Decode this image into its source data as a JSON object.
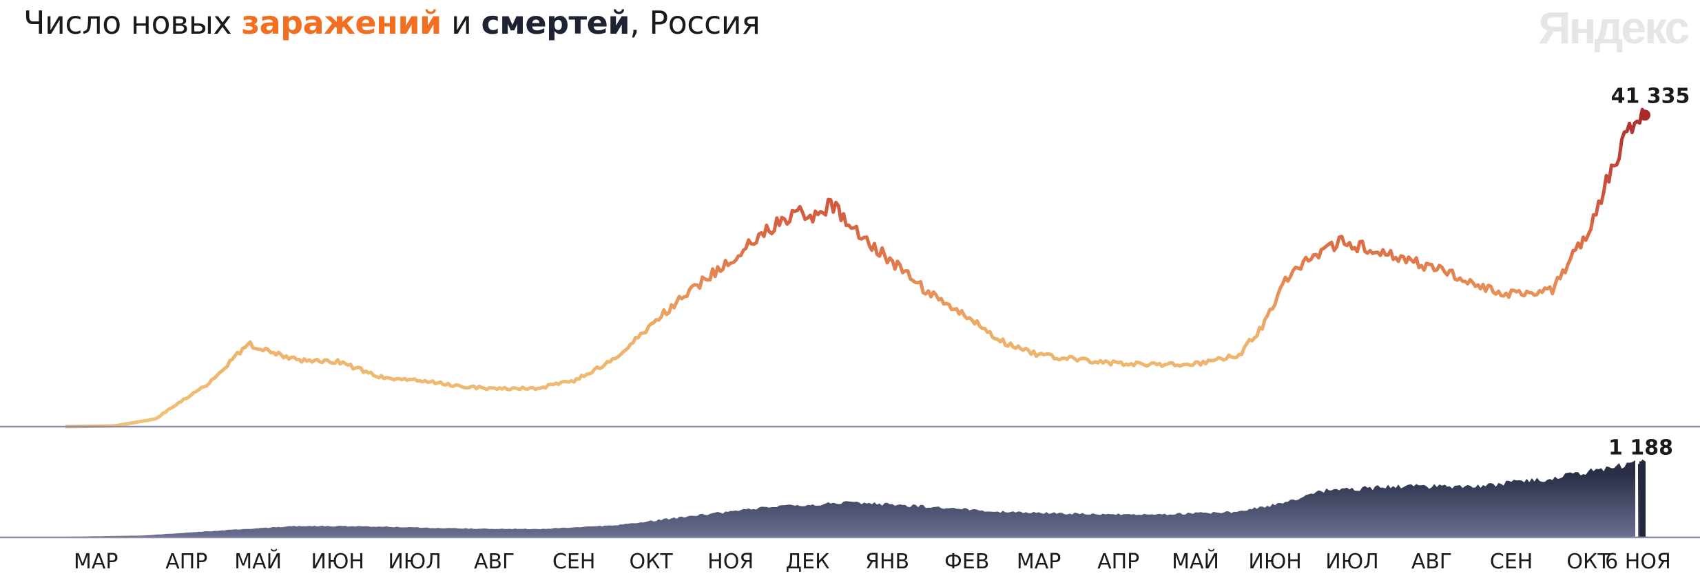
{
  "title": {
    "prefix": "Число новых ",
    "cases_word": "заражений",
    "middle": " и ",
    "deaths_word": "смертей",
    "suffix": ", Россия",
    "cases_color": "#f26e21",
    "deaths_color": "#1d2333"
  },
  "brand": "Яндекс",
  "chart_data": [
    {
      "type": "line",
      "title": "Число новых заражений",
      "x_anchor_dates": [
        "2020-03-01",
        "2020-03-20",
        "2020-04-05",
        "2020-04-15",
        "2020-04-25",
        "2020-05-01",
        "2020-05-11",
        "2020-05-20",
        "2020-06-01",
        "2020-06-15",
        "2020-07-01",
        "2020-07-15",
        "2020-08-01",
        "2020-08-15",
        "2020-09-01",
        "2020-09-15",
        "2020-10-01",
        "2020-10-15",
        "2020-11-01",
        "2020-11-15",
        "2020-12-01",
        "2020-12-10",
        "2020-12-20",
        "2020-12-24",
        "2021-01-01",
        "2021-01-15",
        "2021-02-01",
        "2021-02-15",
        "2021-03-01",
        "2021-03-15",
        "2021-04-01",
        "2021-04-15",
        "2021-05-01",
        "2021-05-15",
        "2021-06-01",
        "2021-06-10",
        "2021-06-20",
        "2021-07-01",
        "2021-07-10",
        "2021-07-20",
        "2021-08-01",
        "2021-08-15",
        "2021-09-01",
        "2021-09-15",
        "2021-10-01",
        "2021-10-15",
        "2021-10-25",
        "2021-11-01",
        "2021-11-06"
      ],
      "values": [
        0,
        100,
        1000,
        3400,
        5500,
        7500,
        11000,
        9800,
        8800,
        8700,
        6600,
        6200,
        5400,
        5000,
        5100,
        6100,
        8900,
        13500,
        18500,
        22000,
        26500,
        28500,
        28000,
        29500,
        26500,
        22500,
        17500,
        14500,
        11300,
        9500,
        8800,
        8400,
        8200,
        8300,
        9500,
        13300,
        20000,
        23000,
        24500,
        23800,
        22500,
        21200,
        18800,
        17500,
        18000,
        26000,
        35000,
        40000,
        41335
      ],
      "last_value": 41335,
      "last_label": "41 335",
      "ylim": [
        0,
        42000
      ]
    },
    {
      "type": "area",
      "title": "Число новых смертей",
      "x_anchor_dates": [
        "2020-03-01",
        "2020-04-01",
        "2020-05-01",
        "2020-06-01",
        "2020-07-01",
        "2020-08-01",
        "2020-09-01",
        "2020-10-01",
        "2020-11-01",
        "2020-12-01",
        "2021-01-01",
        "2021-02-01",
        "2021-03-01",
        "2021-04-01",
        "2021-05-01",
        "2021-06-01",
        "2021-06-20",
        "2021-07-01",
        "2021-08-01",
        "2021-09-01",
        "2021-10-01",
        "2021-11-01",
        "2021-11-06"
      ],
      "values": [
        0,
        20,
        100,
        170,
        160,
        130,
        120,
        180,
        330,
        470,
        540,
        470,
        390,
        360,
        350,
        390,
        550,
        720,
        790,
        790,
        920,
        1150,
        1188
      ],
      "last_value": 1188,
      "last_label": "1 188",
      "ylim": [
        0,
        1300
      ]
    }
  ],
  "x_axis": {
    "labels": [
      {
        "label": "МАР",
        "date": "2020-03-15"
      },
      {
        "label": "АПР",
        "date": "2020-04-15"
      },
      {
        "label": "МАЙ",
        "date": "2020-05-15"
      },
      {
        "label": "ИЮН",
        "date": "2020-06-15"
      },
      {
        "label": "ИЮЛ",
        "date": "2020-07-15"
      },
      {
        "label": "АВГ",
        "date": "2020-08-15"
      },
      {
        "label": "СЕН",
        "date": "2020-09-15"
      },
      {
        "label": "ОКТ",
        "date": "2020-10-15"
      },
      {
        "label": "НОЯ",
        "date": "2020-11-15"
      },
      {
        "label": "ДЕК",
        "date": "2020-12-15"
      },
      {
        "label": "ЯНВ",
        "date": "2021-01-15"
      },
      {
        "label": "ФЕВ",
        "date": "2021-02-15"
      },
      {
        "label": "МАР",
        "date": "2021-03-15"
      },
      {
        "label": "АПР",
        "date": "2021-04-15"
      },
      {
        "label": "МАЙ",
        "date": "2021-05-15"
      },
      {
        "label": "ИЮН",
        "date": "2021-06-15"
      },
      {
        "label": "ИЮЛ",
        "date": "2021-07-15"
      },
      {
        "label": "АВГ",
        "date": "2021-08-15"
      },
      {
        "label": "СЕН",
        "date": "2021-09-15"
      },
      {
        "label": "ОКТ",
        "date": "2021-10-15"
      },
      {
        "label": "6 НОЯ",
        "date": "2021-11-06"
      }
    ]
  },
  "colors": {
    "cases_low": "#efc27a",
    "cases_mid": "#d9653c",
    "cases_high": "#a82a2a",
    "deaths_fill": "#575c7d",
    "deaths_fill_dark": "#23283d",
    "baseline": "#8a8ca8"
  }
}
